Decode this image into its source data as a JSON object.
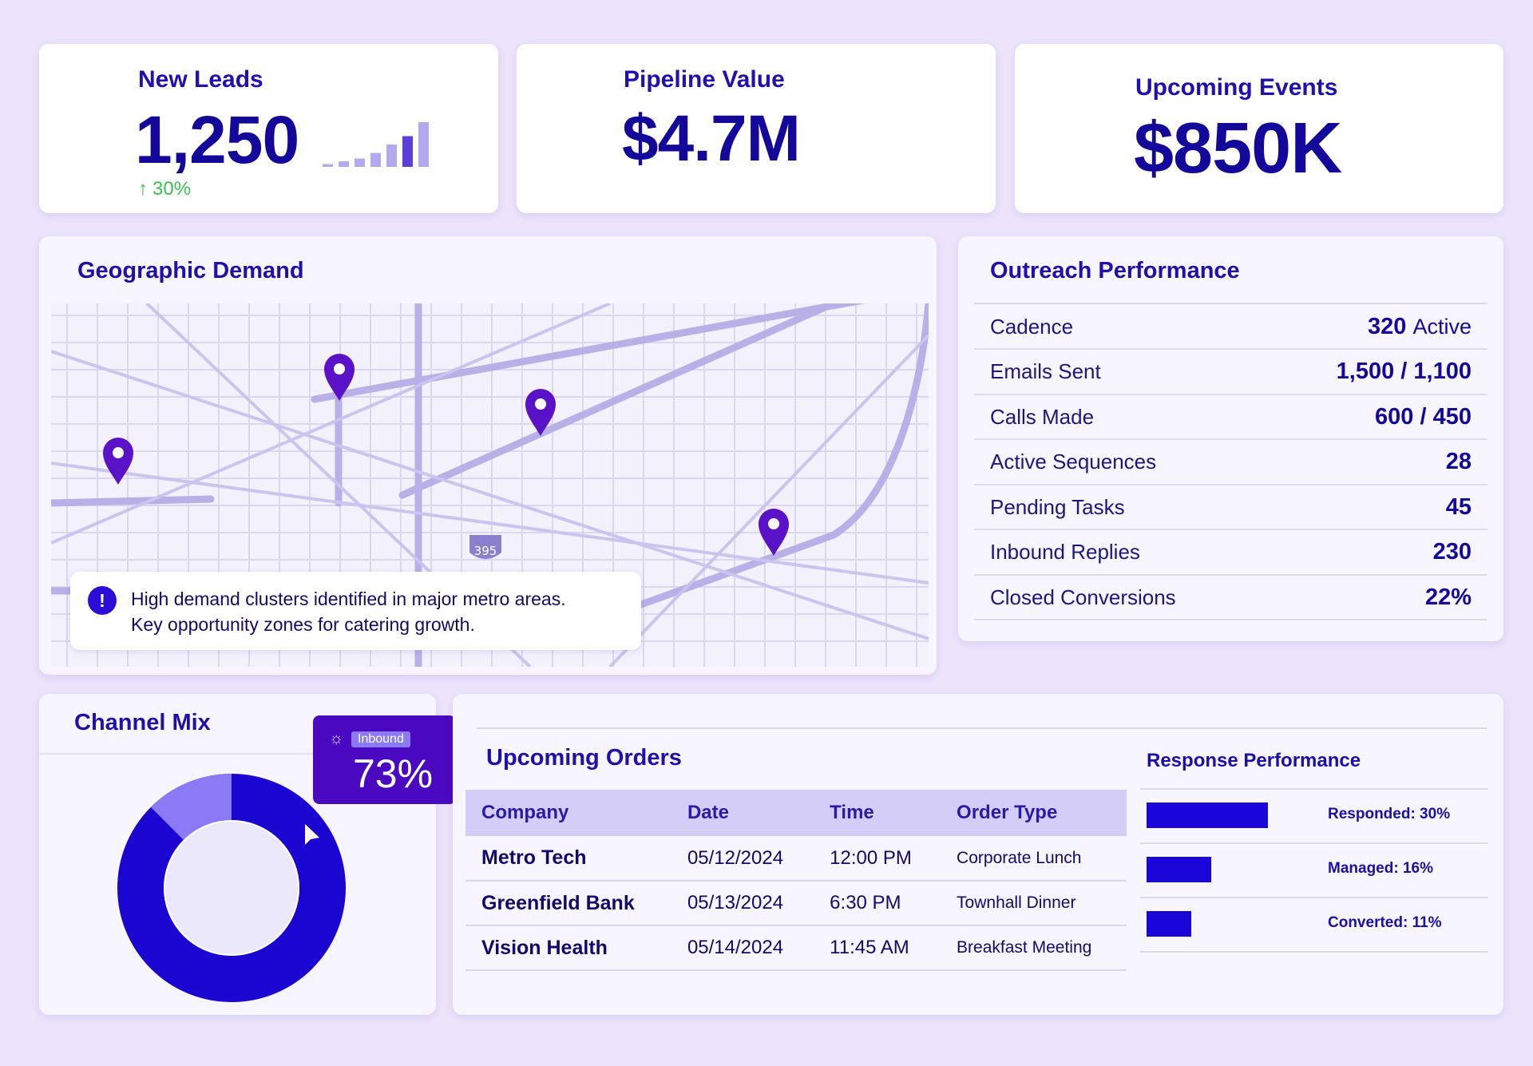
{
  "kpis": {
    "new_leads": {
      "title": "New Leads",
      "value": "1,250",
      "change": "30%",
      "trend_icon": "arrow-up-icon",
      "sparkline": [
        1,
        2,
        3,
        5,
        8,
        11,
        16
      ]
    },
    "pipeline": {
      "title": "Pipeline Value",
      "value": "$4.7M"
    },
    "events": {
      "title": "Upcoming Events",
      "value": "$850K"
    }
  },
  "geo": {
    "title": "Geographic Demand",
    "highway_shield": "395",
    "callout_line1": "High demand clusters identified in major metro areas.",
    "callout_line2": "Key opportunity zones for catering growth.",
    "pins": 4
  },
  "outreach": {
    "title": "Outreach Performance",
    "rows": [
      {
        "label": "Cadence",
        "value": "320",
        "suffix": "Active"
      },
      {
        "label": "Emails Sent",
        "value": "1,500 / 1,100",
        "suffix": ""
      },
      {
        "label": "Calls Made",
        "value": "600 / 450",
        "suffix": ""
      },
      {
        "label": "Active Sequences",
        "value": "28",
        "suffix": ""
      },
      {
        "label": "Pending Tasks",
        "value": "45",
        "suffix": ""
      },
      {
        "label": "Inbound Replies",
        "value": "230",
        "suffix": ""
      },
      {
        "label": "Closed Conversions",
        "value": "22%",
        "suffix": ""
      }
    ]
  },
  "channel_mix": {
    "title": "Channel Mix",
    "tooltip_label": "Inbound",
    "tooltip_value": "73%",
    "colors": {
      "primary": "#1a06d0",
      "secondary": "#8a7af5"
    }
  },
  "orders": {
    "title": "Upcoming Orders",
    "columns": [
      "Company",
      "Date",
      "Time",
      "Order Type"
    ],
    "rows": [
      [
        "Metro Tech",
        "05/12/2024",
        "12:00 PM",
        "Corporate Lunch"
      ],
      [
        "Greenfield Bank",
        "05/13/2024",
        "6:30 PM",
        "Townhall Dinner"
      ],
      [
        "Vision Health",
        "05/14/2024",
        "11:45 AM",
        "Breakfast Meeting"
      ]
    ]
  },
  "response": {
    "title": "Response Performance",
    "items": [
      {
        "label": "Responded: 30%",
        "value": 30
      },
      {
        "label": "Managed: 16%",
        "value": 16
      },
      {
        "label": "Converted: 11%",
        "value": 11
      }
    ]
  }
}
